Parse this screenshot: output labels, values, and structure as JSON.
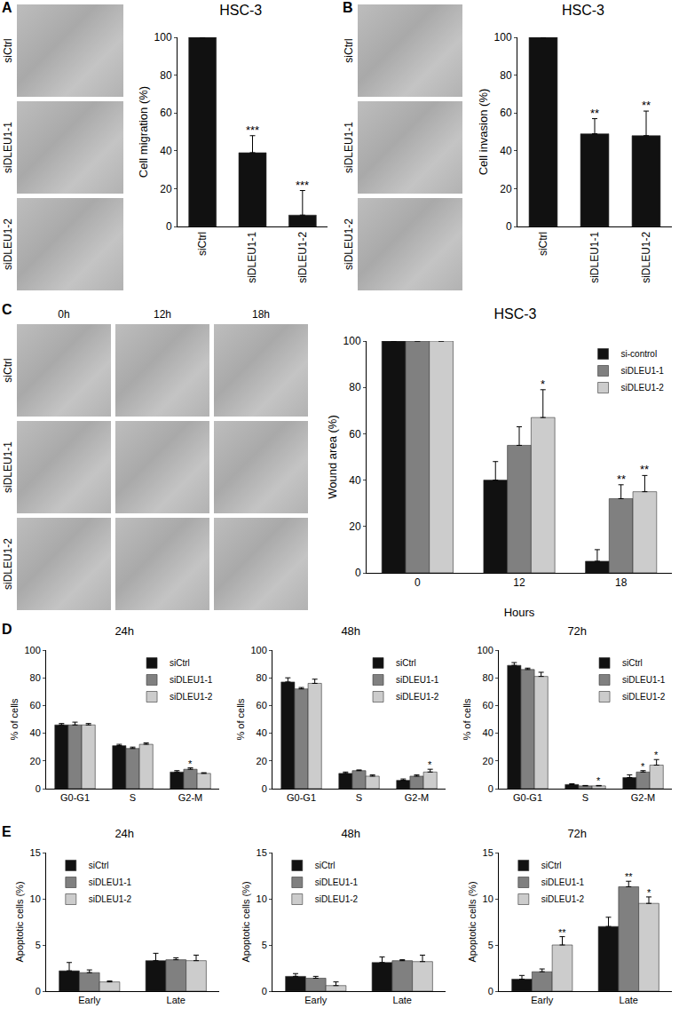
{
  "chart_data": [
    {
      "type": "bar",
      "panel": "A",
      "title": "HSC-3",
      "y_label": "Cell migration (%)",
      "categories": [
        "siCtrl",
        "siDLEU1-1",
        "siDLEU1-2"
      ],
      "series": [
        {
          "name": "HSC-3",
          "color": "#111111",
          "values": [
            100,
            39,
            6
          ],
          "errors": [
            0,
            9,
            13
          ],
          "significance": [
            null,
            "***",
            "***"
          ]
        }
      ],
      "ylim": [
        0,
        100
      ],
      "yticks": [
        0,
        20,
        40,
        60,
        80,
        100
      ],
      "grid": false
    },
    {
      "type": "bar",
      "panel": "B",
      "title": "HSC-3",
      "y_label": "Cell invasion (%)",
      "categories": [
        "siCtrl",
        "siDLEU1-1",
        "siDLEU1-2"
      ],
      "series": [
        {
          "name": "HSC-3",
          "color": "#111111",
          "values": [
            100,
            49,
            48
          ],
          "errors": [
            0,
            8,
            13
          ],
          "significance": [
            null,
            "**",
            "**"
          ]
        }
      ],
      "ylim": [
        0,
        100
      ],
      "yticks": [
        0,
        20,
        40,
        60,
        80,
        100
      ],
      "grid": false
    },
    {
      "type": "bar",
      "panel": "C",
      "title": "HSC-3",
      "y_label": "Wound area (%)",
      "x_label": "Hours",
      "categories": [
        "0",
        "12",
        "18"
      ],
      "series": [
        {
          "name": "si-control",
          "color": "#111111",
          "values": [
            100,
            40,
            5
          ],
          "errors": [
            0,
            8,
            5
          ]
        },
        {
          "name": "siDLEU1-1",
          "color": "#808080",
          "values": [
            100,
            55,
            32
          ],
          "errors": [
            0,
            8,
            6
          ],
          "significance": [
            null,
            null,
            "**"
          ]
        },
        {
          "name": "siDLEU1-2",
          "color": "#cccccc",
          "values": [
            100,
            67,
            35
          ],
          "errors": [
            0,
            12,
            7
          ],
          "significance": [
            null,
            "*",
            "**"
          ]
        }
      ],
      "ylim": [
        0,
        100
      ],
      "yticks": [
        0,
        20,
        40,
        60,
        80,
        100
      ],
      "grid": false,
      "legend": "upper right"
    },
    {
      "type": "bar",
      "panel": "D",
      "title": "24h",
      "y_label": "% of cells",
      "categories": [
        "G0-G1",
        "S",
        "G2-M"
      ],
      "series": [
        {
          "name": "siCtrl",
          "color": "#111111",
          "values": [
            46,
            31,
            12
          ],
          "errors": [
            1,
            1,
            1
          ]
        },
        {
          "name": "siDLEU1-1",
          "color": "#808080",
          "values": [
            46,
            29,
            14
          ],
          "errors": [
            2,
            1,
            1
          ],
          "significance": [
            null,
            null,
            "*"
          ]
        },
        {
          "name": "siDLEU1-2",
          "color": "#cccccc",
          "values": [
            46,
            32,
            11
          ],
          "errors": [
            1,
            1,
            0.5
          ]
        }
      ],
      "ylim": [
        0,
        100
      ],
      "yticks": [
        0,
        20,
        40,
        60,
        80,
        100
      ],
      "grid": false,
      "legend": "upper right"
    },
    {
      "type": "bar",
      "title": "48h",
      "y_label": "% of cells",
      "categories": [
        "G0-G1",
        "S",
        "G2-M"
      ],
      "series": [
        {
          "name": "siCtrl",
          "color": "#111111",
          "values": [
            77,
            11,
            6
          ],
          "errors": [
            3,
            1,
            1
          ]
        },
        {
          "name": "siDLEU1-1",
          "color": "#808080",
          "values": [
            72,
            13,
            9
          ],
          "errors": [
            1,
            0.5,
            1
          ]
        },
        {
          "name": "siDLEU1-2",
          "color": "#cccccc",
          "values": [
            76,
            9,
            12
          ],
          "errors": [
            3,
            1,
            2
          ],
          "significance": [
            null,
            null,
            "*"
          ]
        }
      ],
      "ylim": [
        0,
        100
      ],
      "yticks": [
        0,
        20,
        40,
        60,
        80,
        100
      ],
      "grid": false,
      "legend": "upper right"
    },
    {
      "type": "bar",
      "title": "72h",
      "y_label": "% of cells",
      "categories": [
        "G0-G1",
        "S",
        "G2-M"
      ],
      "series": [
        {
          "name": "siCtrl",
          "color": "#111111",
          "values": [
            89,
            3,
            8
          ],
          "errors": [
            2,
            0.5,
            2
          ]
        },
        {
          "name": "siDLEU1-1",
          "color": "#808080",
          "values": [
            86,
            2,
            12
          ],
          "errors": [
            1,
            0.3,
            1
          ],
          "significance": [
            null,
            null,
            "*"
          ]
        },
        {
          "name": "siDLEU1-2",
          "color": "#cccccc",
          "values": [
            81,
            2,
            17
          ],
          "errors": [
            3,
            0.3,
            4
          ],
          "significance": [
            null,
            "*",
            "*"
          ]
        }
      ],
      "ylim": [
        0,
        100
      ],
      "yticks": [
        0,
        20,
        40,
        60,
        80,
        100
      ],
      "grid": false,
      "legend": "upper right"
    },
    {
      "type": "bar",
      "panel": "E",
      "title": "24h",
      "y_label": "Apoptotic cells (%)",
      "categories": [
        "Early",
        "Late"
      ],
      "series": [
        {
          "name": "siCtrl",
          "color": "#111111",
          "values": [
            2.2,
            3.3
          ],
          "errors": [
            0.9,
            0.8
          ]
        },
        {
          "name": "siDLEU1-1",
          "color": "#808080",
          "values": [
            2.0,
            3.4
          ],
          "errors": [
            0.3,
            0.2
          ]
        },
        {
          "name": "siDLEU1-2",
          "color": "#cccccc",
          "values": [
            1.0,
            3.3
          ],
          "errors": [
            0.1,
            0.6
          ]
        }
      ],
      "ylim": [
        0,
        15
      ],
      "yticks": [
        0,
        5,
        10,
        15
      ],
      "grid": false,
      "legend": "upper left"
    },
    {
      "type": "bar",
      "title": "48h",
      "y_label": "Apoptotic cells (%)",
      "categories": [
        "Early",
        "Late"
      ],
      "series": [
        {
          "name": "siCtrl",
          "color": "#111111",
          "values": [
            1.6,
            3.1
          ],
          "errors": [
            0.3,
            0.6
          ]
        },
        {
          "name": "siDLEU1-1",
          "color": "#808080",
          "values": [
            1.4,
            3.3
          ],
          "errors": [
            0.2,
            0.1
          ]
        },
        {
          "name": "siDLEU1-2",
          "color": "#cccccc",
          "values": [
            0.6,
            3.2
          ],
          "errors": [
            0.4,
            0.7
          ]
        }
      ],
      "ylim": [
        0,
        15
      ],
      "yticks": [
        0,
        5,
        10,
        15
      ],
      "grid": false,
      "legend": "upper left"
    },
    {
      "type": "bar",
      "title": "72h",
      "y_label": "Apoptotic cells (%)",
      "categories": [
        "Early",
        "Late"
      ],
      "series": [
        {
          "name": "siCtrl",
          "color": "#111111",
          "values": [
            1.3,
            7.0
          ],
          "errors": [
            0.4,
            1.0
          ]
        },
        {
          "name": "siDLEU1-1",
          "color": "#808080",
          "values": [
            2.1,
            11.3
          ],
          "errors": [
            0.3,
            0.6
          ],
          "significance": [
            null,
            "**"
          ]
        },
        {
          "name": "siDLEU1-2",
          "color": "#cccccc",
          "values": [
            5.0,
            9.5
          ],
          "errors": [
            0.9,
            0.7
          ],
          "significance": [
            "**",
            "*"
          ]
        }
      ],
      "ylim": [
        0,
        15
      ],
      "yticks": [
        0,
        5,
        10,
        15
      ],
      "grid": false,
      "legend": "upper left"
    }
  ],
  "images": [
    {
      "rows": [
        "siCtrl",
        "siDLEU1-1",
        "siDLEU1-2"
      ]
    },
    {
      "rows": [
        "siCtrl",
        "siDLEU1-1",
        "siDLEU1-2"
      ]
    },
    {
      "rows": [
        "siCtrl",
        "siDLEU1-1",
        "siDLEU1-2"
      ],
      "columns": [
        "0h",
        "12h",
        "18h"
      ]
    }
  ]
}
